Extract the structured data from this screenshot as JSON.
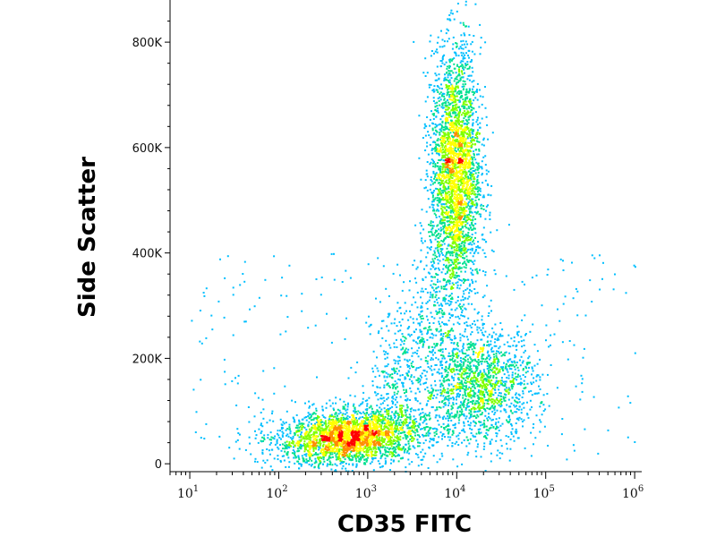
{
  "chart_data": {
    "type": "scatter",
    "subtype": "flow-cytometry density dot plot",
    "xlabel": "CD35 FITC",
    "ylabel": "Side Scatter",
    "x_scale": "log",
    "xlim": [
      6,
      1200000
    ],
    "ylim": [
      -15000,
      880000
    ],
    "x_ticks": [
      {
        "value": 10,
        "base": "10",
        "exp": "1"
      },
      {
        "value": 100,
        "base": "10",
        "exp": "2"
      },
      {
        "value": 1000,
        "base": "10",
        "exp": "3"
      },
      {
        "value": 10000,
        "base": "10",
        "exp": "4"
      },
      {
        "value": 100000,
        "base": "10",
        "exp": "5"
      },
      {
        "value": 1000000,
        "base": "10",
        "exp": "6"
      }
    ],
    "y_ticks": [
      {
        "value": 0,
        "label": "0"
      },
      {
        "value": 200000,
        "label": "200K"
      },
      {
        "value": 400000,
        "label": "400K"
      },
      {
        "value": 600000,
        "label": "600K"
      },
      {
        "value": 800000,
        "label": "800K"
      }
    ],
    "grid": false,
    "color_scale": [
      "#0000ff",
      "#00bfff",
      "#00e090",
      "#7fff00",
      "#ffff00",
      "#ff8c00",
      "#ff0000"
    ],
    "populations": [
      {
        "center_x": 700,
        "center_y": 50000,
        "count": 2600
      },
      {
        "center_x": 9500,
        "center_y": 560000,
        "count": 2800
      },
      {
        "center_x": 18000,
        "center_y": 150000,
        "count": 1500
      }
    ]
  }
}
